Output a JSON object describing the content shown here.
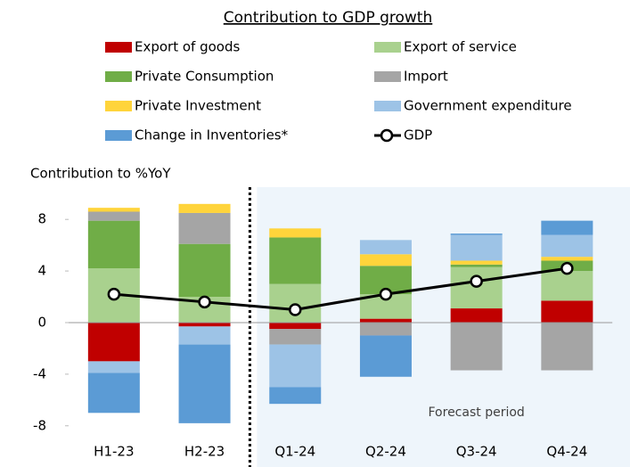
{
  "chart_data": {
    "type": "stacked_bar_line",
    "title": "Contribution to GDP growth",
    "y_axis_label": "Contribution to %YoY",
    "annotation": "Forecast period",
    "categories": [
      "H1-23",
      "H2-23",
      "Q1-24",
      "Q2-24",
      "Q3-24",
      "Q4-24"
    ],
    "series": [
      {
        "name": "Export of goods",
        "color": "#c00000",
        "values": [
          -3.0,
          -0.3,
          -0.5,
          0.3,
          1.1,
          1.7
        ]
      },
      {
        "name": "Export of service",
        "color": "#a9d18e",
        "values": [
          4.2,
          2.0,
          3.0,
          1.9,
          3.2,
          2.3
        ]
      },
      {
        "name": "Private Consumption",
        "color": "#70ad47",
        "values": [
          3.7,
          4.1,
          3.6,
          2.2,
          0.2,
          0.8
        ]
      },
      {
        "name": "Import",
        "color": "#a5a5a5",
        "values": [
          0.7,
          2.4,
          -1.2,
          -1.0,
          -3.7,
          -3.7
        ]
      },
      {
        "name": "Private Investment",
        "color": "#ffd43b",
        "values": [
          0.3,
          0.7,
          0.7,
          0.9,
          0.3,
          0.3
        ]
      },
      {
        "name": "Government expenditure",
        "color": "#9dc3e6",
        "values": [
          -0.9,
          -1.4,
          -3.3,
          1.1,
          2.0,
          1.7
        ]
      },
      {
        "name": "Change in Inventories*",
        "color": "#5b9bd5",
        "values": [
          -3.1,
          -6.1,
          -1.3,
          -3.2,
          0.1,
          1.1
        ]
      },
      {
        "name": "GDP",
        "color": "#000000",
        "type": "line",
        "values": [
          2.2,
          1.6,
          1.0,
          2.2,
          3.2,
          4.2
        ]
      }
    ],
    "ylim": [
      -8.5,
      10.5
    ],
    "yticks": [
      -8,
      -4,
      0,
      4,
      8
    ],
    "grid": false
  }
}
